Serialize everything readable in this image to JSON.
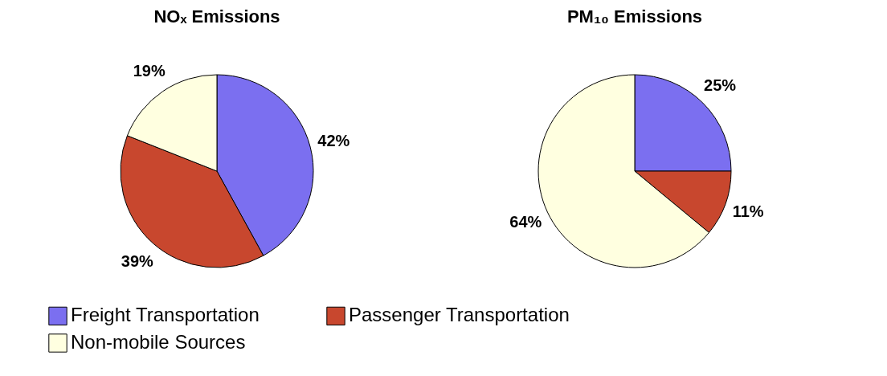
{
  "chart_data": {
    "type": "pie",
    "categories": [
      "Freight Transportation",
      "Passenger Transportation",
      "Non-mobile Sources"
    ],
    "colors": [
      "#7b6ff0",
      "#c8472e",
      "#ffffe0"
    ],
    "legend": "bottom",
    "series": [
      {
        "name": "NOₓ Emissions",
        "values": [
          42,
          39,
          19
        ],
        "value_labels": [
          "42%",
          "39%",
          "19%"
        ]
      },
      {
        "name": "PM₁₀ Emissions",
        "values": [
          25,
          11,
          64
        ],
        "value_labels": [
          "25%",
          "11%",
          "64%"
        ]
      }
    ]
  }
}
